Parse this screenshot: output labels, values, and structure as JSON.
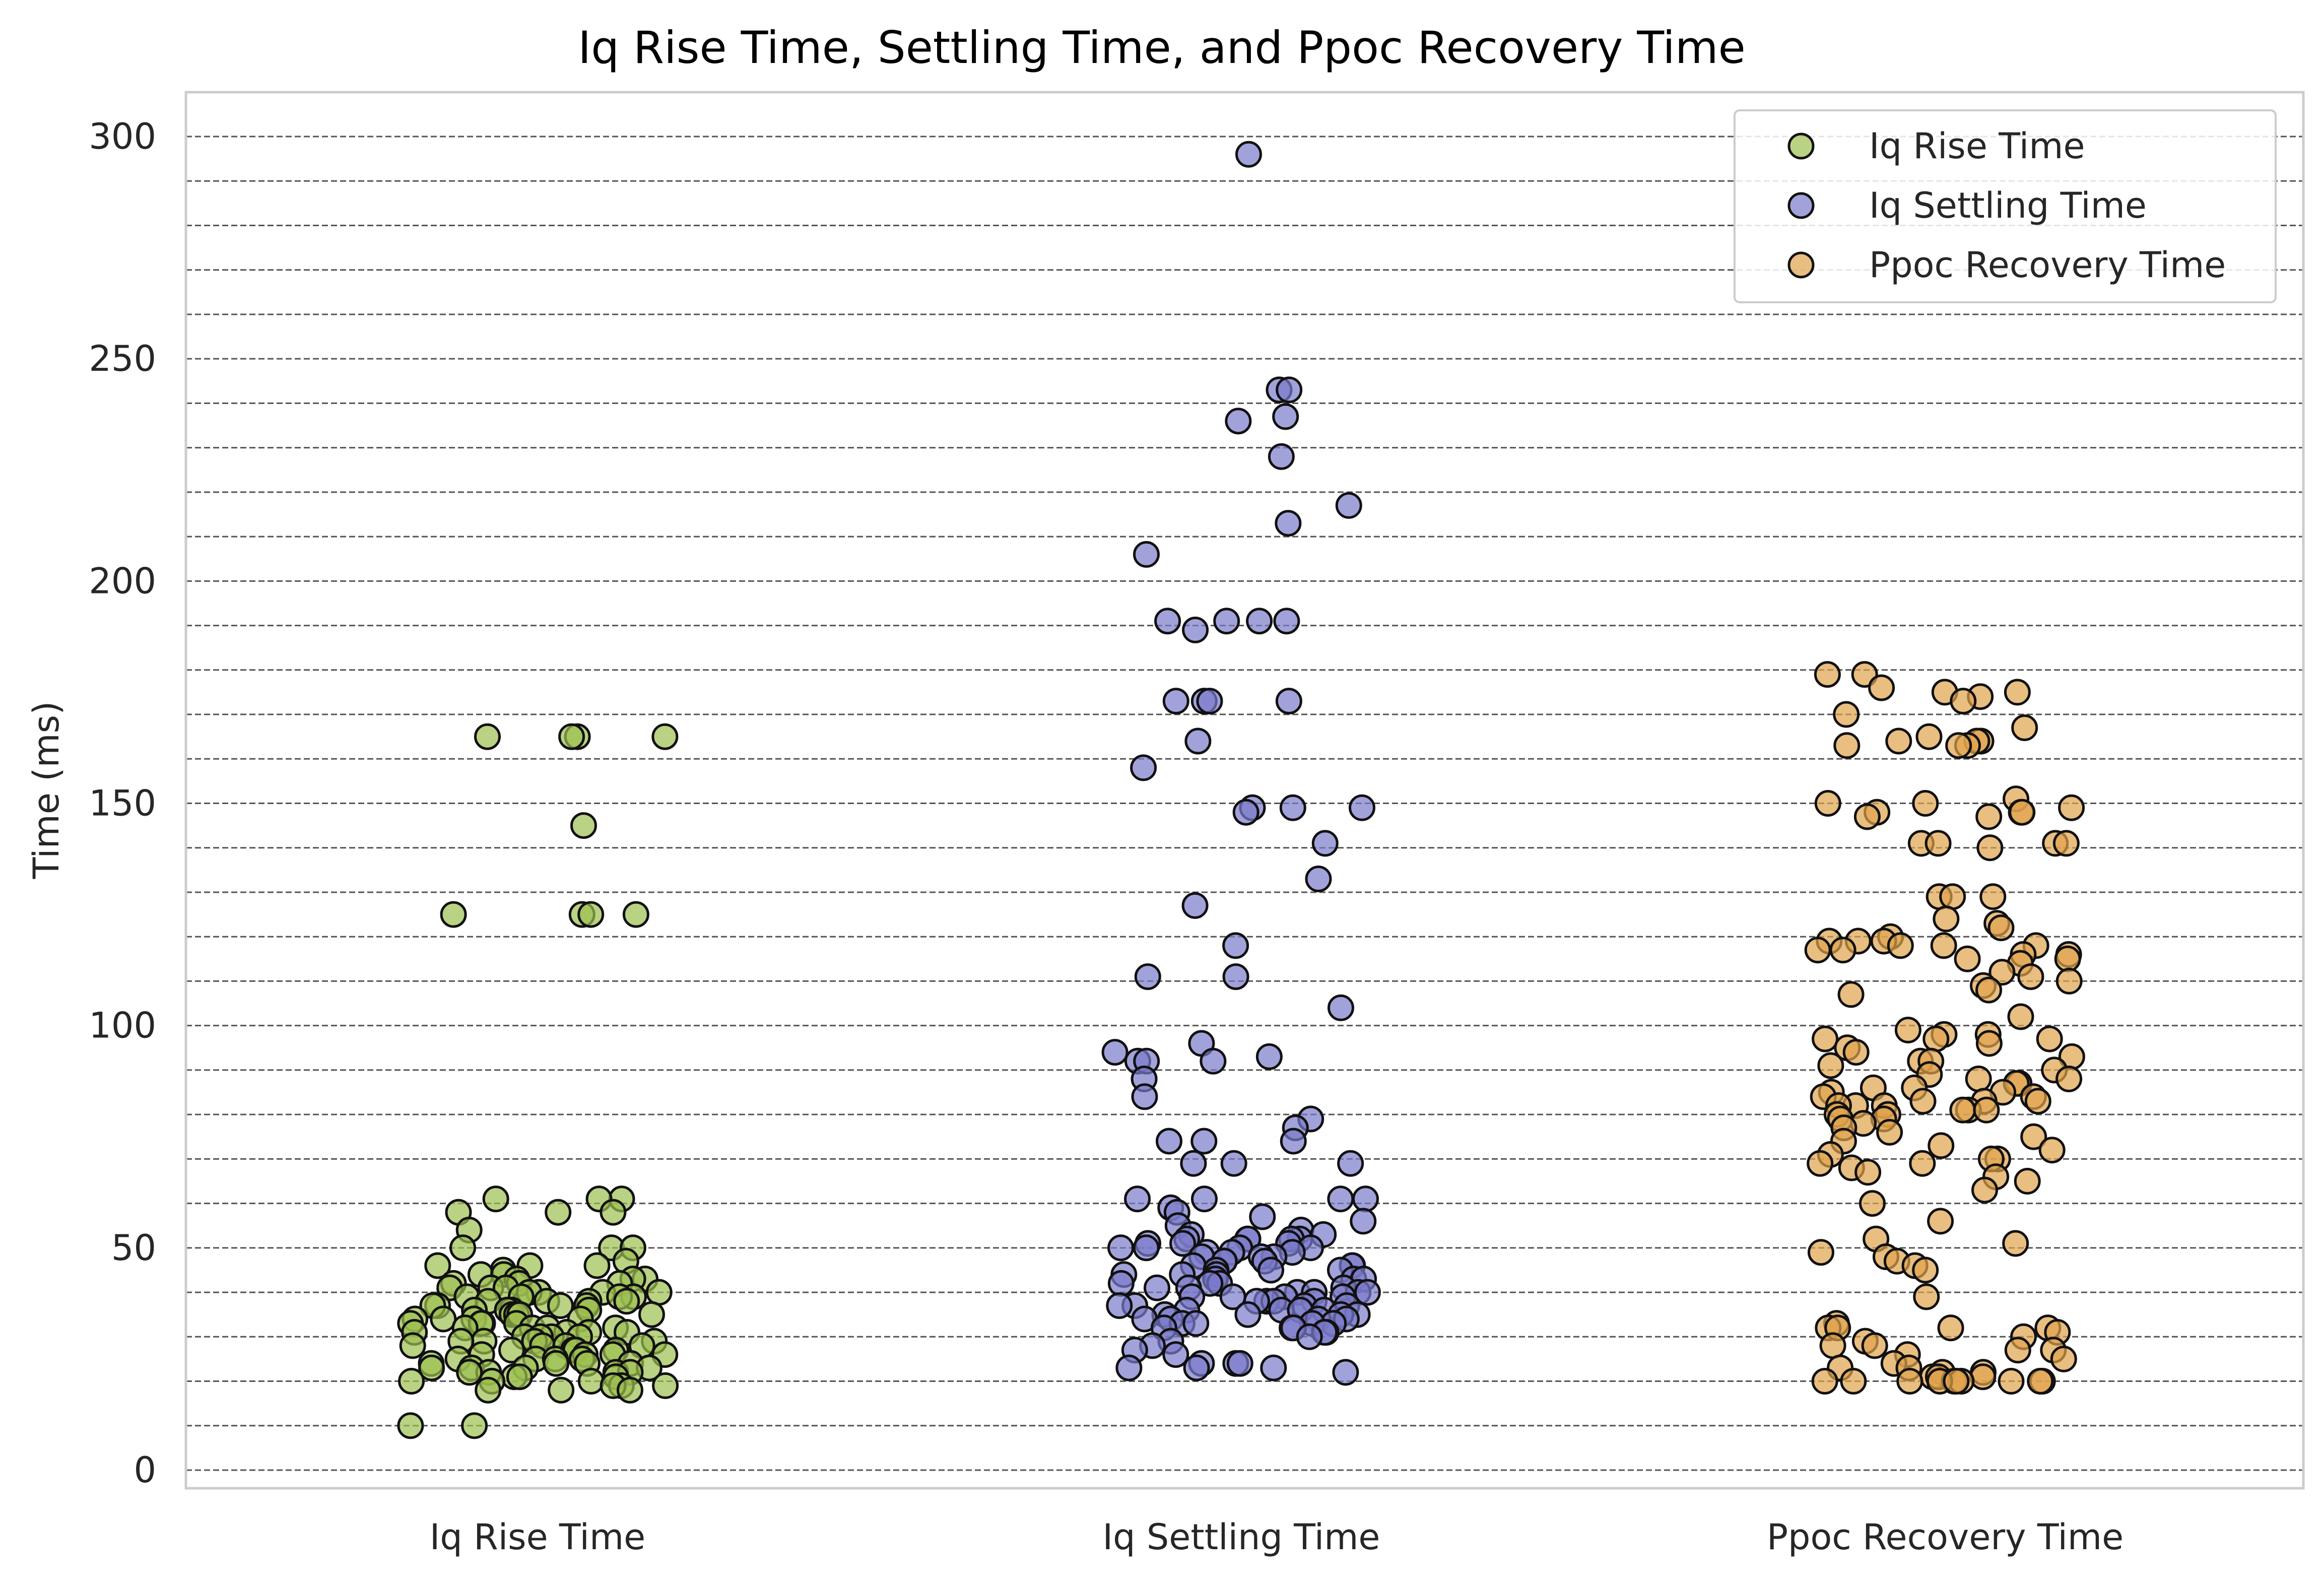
{
  "chart_data": {
    "type": "scatter",
    "title": "Iq Rise Time, Settling Time, and Ppoc Recovery Time",
    "xlabel": "",
    "ylabel": "Time (ms)",
    "categories": [
      "Iq Rise Time",
      "Iq Settling Time",
      "Ppoc Recovery Time"
    ],
    "ylim": [
      -4,
      310
    ],
    "yticks": [
      0,
      50,
      100,
      150,
      200,
      250,
      300
    ],
    "grid": {
      "axis": "y",
      "step": 10,
      "style": "dashed"
    },
    "legend": {
      "position": "top-right",
      "entries": [
        "Iq Rise Time",
        "Iq Settling Time",
        "Ppoc Recovery Time"
      ]
    },
    "jitter": true,
    "series": [
      {
        "name": "Iq Rise Time",
        "color": "#9dbf4f",
        "values": [
          165,
          165,
          165,
          165,
          145,
          125,
          125,
          125,
          125,
          61,
          61,
          61,
          58,
          58,
          58,
          54,
          50,
          50,
          50,
          47,
          46,
          46,
          46,
          45,
          44,
          44,
          43,
          43,
          43,
          42,
          42,
          42,
          41,
          41,
          41,
          40,
          40,
          40,
          40,
          39,
          39,
          39,
          39,
          38,
          38,
          38,
          38,
          37,
          37,
          37,
          37,
          36,
          36,
          36,
          36,
          35,
          35,
          35,
          35,
          34,
          34,
          34,
          34,
          33,
          33,
          33,
          33,
          32,
          32,
          32,
          32,
          31,
          31,
          31,
          31,
          30,
          30,
          30,
          30,
          29,
          29,
          29,
          29,
          28,
          28,
          28,
          28,
          27,
          27,
          27,
          27,
          26,
          26,
          26,
          26,
          25,
          25,
          25,
          25,
          24,
          24,
          24,
          24,
          23,
          23,
          23,
          23,
          22,
          22,
          22,
          22,
          21,
          21,
          21,
          20,
          20,
          20,
          19,
          19,
          19,
          18,
          18,
          18,
          10,
          10
        ]
      },
      {
        "name": "Iq Settling Time",
        "color": "#7a7acc",
        "values": [
          296,
          243,
          243,
          237,
          236,
          228,
          217,
          213,
          206,
          191,
          191,
          191,
          191,
          189,
          173,
          173,
          173,
          173,
          164,
          158,
          149,
          149,
          149,
          148,
          141,
          133,
          127,
          118,
          111,
          111,
          104,
          96,
          94,
          93,
          92,
          92,
          92,
          88,
          84,
          79,
          77,
          74,
          74,
          74,
          69,
          69,
          69,
          61,
          61,
          61,
          61,
          59,
          58,
          57,
          56,
          55,
          54,
          53,
          53,
          52,
          52,
          52,
          52,
          52,
          51,
          51,
          51,
          50,
          50,
          50,
          50,
          49,
          49,
          49,
          48,
          48,
          48,
          47,
          47,
          47,
          46,
          46,
          46,
          45,
          45,
          45,
          44,
          44,
          44,
          43,
          43,
          43,
          42,
          42,
          42,
          41,
          41,
          41,
          40,
          40,
          40,
          40,
          39,
          39,
          39,
          39,
          38,
          38,
          38,
          38,
          37,
          37,
          37,
          37,
          36,
          36,
          36,
          36,
          35,
          35,
          35,
          35,
          34,
          34,
          34,
          34,
          33,
          33,
          33,
          33,
          32,
          32,
          32,
          31,
          31,
          30,
          29,
          28,
          27,
          26,
          24,
          24,
          24,
          23,
          23,
          23,
          22
        ]
      },
      {
        "name": "Ppoc Recovery Time",
        "color": "#e0a24c",
        "values": [
          179,
          179,
          176,
          175,
          175,
          174,
          173,
          170,
          167,
          165,
          164,
          164,
          164,
          163,
          163,
          163,
          151,
          150,
          150,
          149,
          148,
          148,
          148,
          147,
          147,
          141,
          141,
          141,
          141,
          140,
          129,
          129,
          129,
          124,
          123,
          122,
          120,
          119,
          119,
          119,
          118,
          118,
          118,
          117,
          117,
          116,
          116,
          115,
          115,
          114,
          112,
          111,
          110,
          109,
          108,
          107,
          102,
          99,
          98,
          98,
          97,
          97,
          97,
          96,
          95,
          94,
          93,
          92,
          92,
          91,
          90,
          89,
          88,
          88,
          87,
          87,
          86,
          86,
          85,
          85,
          84,
          84,
          83,
          83,
          83,
          82,
          82,
          82,
          81,
          81,
          81,
          80,
          80,
          79,
          79,
          78,
          77,
          76,
          75,
          74,
          73,
          72,
          71,
          70,
          70,
          69,
          69,
          68,
          67,
          66,
          65,
          63,
          60,
          56,
          52,
          51,
          49,
          48,
          47,
          46,
          45,
          39,
          33,
          32,
          32,
          32,
          32,
          31,
          30,
          29,
          28,
          28,
          27,
          27,
          26,
          25,
          24,
          23,
          23,
          22,
          22,
          21,
          21,
          21,
          20,
          20,
          20,
          20,
          20,
          20,
          20,
          20,
          20,
          20
        ]
      }
    ]
  }
}
